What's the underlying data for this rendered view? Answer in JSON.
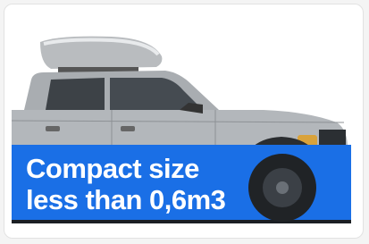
{
  "banner": {
    "lines": [
      "Compact size",
      "less than 0,6m3"
    ]
  }
}
